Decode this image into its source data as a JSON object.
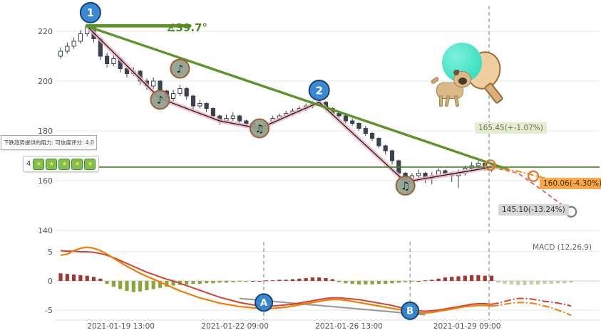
{
  "overlays": {
    "tooltip_resistance": "下跌趋势提供的阻力: 可信度评分: 4.0",
    "badge_count": "4",
    "badge_star": "★",
    "angle_label": "∡39.7°",
    "price_label_current": "165.45(+-1.07%)",
    "price_label_mid": "160.06(-4.30%)",
    "price_label_low": "145.10(-13.24%)",
    "macd_param_label": "MACD (12,26,9)"
  },
  "chart_data": {
    "type": "candlestick",
    "title": "Hourly stock candlestick chart with downtrend resistance lines, ZigZag overlay and MACD panel",
    "x_axis": {
      "ticks": [
        {
          "label": "2021-01-19 13:00",
          "i": 9.1
        },
        {
          "label": "2021-01-22 09:00",
          "i": 26.3
        },
        {
          "label": "2021-01-26 13:00",
          "i": 43.5
        },
        {
          "label": "2021-01-29 09:00",
          "i": 61.3
        }
      ]
    },
    "price_axis": {
      "ticks": [
        220,
        200,
        180,
        160,
        140
      ],
      "min": 138,
      "max": 228
    },
    "macd_axis": {
      "ticks": [
        5,
        0,
        -5
      ],
      "min": -7,
      "max": 7
    },
    "candles_ohlc": [
      [
        210,
        213.5,
        209,
        212
      ],
      [
        212,
        215.5,
        211,
        214
      ],
      [
        214,
        217.5,
        213,
        216
      ],
      [
        216,
        220.5,
        215,
        219
      ],
      [
        219,
        223,
        218,
        222
      ],
      [
        222,
        222.5,
        215.5,
        217
      ],
      [
        217,
        217.5,
        208.5,
        210
      ],
      [
        210,
        211.5,
        205.5,
        207
      ],
      [
        207,
        210.5,
        206,
        209
      ],
      [
        209,
        209.5,
        203.5,
        205
      ],
      [
        205,
        206,
        201.5,
        203
      ],
      [
        203,
        205.5,
        202,
        204
      ],
      [
        204,
        204.5,
        198.5,
        200
      ],
      [
        200,
        201,
        196.5,
        198
      ],
      [
        198,
        201.5,
        197,
        200
      ],
      [
        200,
        200.5,
        194.5,
        196
      ],
      [
        196,
        196.5,
        191.5,
        193
      ],
      [
        193,
        196.5,
        192,
        195
      ],
      [
        195,
        198.5,
        194,
        197
      ],
      [
        197,
        197.5,
        192.5,
        194
      ],
      [
        194,
        194.5,
        188.5,
        190
      ],
      [
        190,
        192.5,
        189,
        191
      ],
      [
        191,
        191.5,
        187.5,
        189
      ],
      [
        189,
        189.5,
        184.5,
        186
      ],
      [
        186,
        186.5,
        182.5,
        184
      ],
      [
        184,
        186.5,
        183,
        185
      ],
      [
        185,
        187.5,
        184,
        186
      ],
      [
        186,
        186.5,
        182.5,
        184
      ],
      [
        184,
        184.5,
        181.5,
        183
      ],
      [
        183,
        183.5,
        180.5,
        182
      ],
      [
        182,
        182.5,
        179.5,
        181
      ],
      [
        181,
        184,
        180.5,
        183
      ],
      [
        183,
        186,
        182.5,
        185
      ],
      [
        185,
        187,
        184,
        186
      ],
      [
        186,
        188,
        185,
        187
      ],
      [
        187,
        189,
        186,
        188
      ],
      [
        188,
        190,
        187,
        189
      ],
      [
        189,
        191,
        188,
        190
      ],
      [
        190,
        192,
        189,
        191
      ],
      [
        191,
        192.5,
        190,
        191.5
      ],
      [
        191.5,
        192,
        188,
        189
      ],
      [
        189,
        189.5,
        186,
        187
      ],
      [
        187,
        188,
        185,
        186
      ],
      [
        186,
        186.5,
        183,
        184
      ],
      [
        184,
        185,
        182,
        183
      ],
      [
        183,
        183.5,
        180,
        181
      ],
      [
        181,
        182,
        178,
        179
      ],
      [
        179,
        179.5,
        176,
        177
      ],
      [
        177,
        177.5,
        173,
        174
      ],
      [
        174,
        174.5,
        170.5,
        172
      ],
      [
        172,
        172.5,
        166.5,
        168
      ],
      [
        168,
        168.5,
        161.5,
        163
      ],
      [
        163,
        163.5,
        157.5,
        160
      ],
      [
        160,
        163,
        158.5,
        162
      ],
      [
        162,
        164.5,
        160.5,
        163
      ],
      [
        163,
        163.5,
        159,
        161
      ],
      [
        161,
        163.5,
        158.5,
        162
      ],
      [
        162,
        165,
        161,
        164
      ],
      [
        164,
        164.5,
        161.5,
        163
      ],
      [
        163,
        163.5,
        159.5,
        162
      ],
      [
        162,
        164.5,
        157,
        163
      ],
      [
        163,
        166,
        162,
        165
      ],
      [
        165,
        167.5,
        164,
        166
      ],
      [
        166,
        168,
        165,
        167
      ],
      [
        167,
        167.5,
        164,
        166
      ],
      [
        166,
        167,
        163.5,
        165.45
      ]
    ],
    "zigzag": [
      [
        4,
        222
      ],
      [
        15,
        193
      ],
      [
        24,
        184
      ],
      [
        30,
        181
      ],
      [
        39,
        191.5
      ],
      [
        52,
        159.5
      ],
      [
        65,
        165.45
      ]
    ],
    "trend_lines": [
      {
        "from": [
          4,
          222
        ],
        "to": [
          67.5,
          164.5
        ],
        "width": 3.4,
        "role": "downtrend-resistance"
      },
      {
        "from": [
          4,
          222.2
        ],
        "to": [
          19.5,
          222.2
        ],
        "width": 4.6,
        "role": "horizontal-angle-reference"
      }
    ],
    "trend_angle_deg": 39.7,
    "level_line": {
      "price": 165.45
    },
    "projections_price": [
      {
        "name": "bear-target",
        "dash": "6,4",
        "color": "#e06a6a",
        "points": [
          [
            65,
            165.45
          ],
          [
            69,
            163
          ],
          [
            73,
            155.5
          ],
          [
            77,
            147.5
          ]
        ]
      },
      {
        "name": "mid-target",
        "dash": "9,3,2,3",
        "color": "#f08c00",
        "points": [
          [
            65,
            165.45
          ],
          [
            69,
            163.8
          ],
          [
            73,
            161
          ],
          [
            76,
            159.8
          ]
        ]
      }
    ],
    "rings": [
      {
        "i": 64.8,
        "p": 166.2,
        "color": "#e07b39"
      },
      {
        "i": 71.3,
        "p": 161.8,
        "color": "#e07b39"
      },
      {
        "i": 77.0,
        "p": 147.5,
        "color": "#808080"
      }
    ],
    "price_targets": [
      {
        "label": "165.45(+-1.07%)",
        "value": 165.45,
        "change_pct": -1.07
      },
      {
        "label": "160.06(-4.30%)",
        "value": 160.06,
        "change_pct": -4.3
      },
      {
        "label": "145.10(-13.24%)",
        "value": 145.1,
        "change_pct": -13.24
      }
    ],
    "markers_price": [
      {
        "label": "1",
        "i": 4.5,
        "p": 227.5
      },
      {
        "label": "2",
        "i": 39,
        "p": 196.3
      }
    ],
    "note_markers": [
      {
        "glyph": "♪",
        "i": 15,
        "p": 192.5
      },
      {
        "glyph": "♪",
        "i": 18,
        "p": 205
      },
      {
        "glyph": "♫",
        "i": 30,
        "p": 181
      },
      {
        "glyph": "♫",
        "i": 52,
        "p": 158
      }
    ],
    "dashed_vlines": [
      {
        "i": 64.62,
        "panel": "both"
      },
      {
        "i": 30.65,
        "panel": "macd"
      },
      {
        "i": 52.7,
        "panel": "macd"
      }
    ],
    "macd": {
      "label": "MACD (12,26,9)",
      "hist": [
        1.3,
        1.2,
        1.1,
        1.0,
        0.9,
        0.7,
        0.4,
        -0.5,
        -1.0,
        -1.4,
        -1.7,
        -1.9,
        -1.8,
        -1.6,
        -1.4,
        -1.2,
        -1.0,
        -0.8,
        -0.7,
        -0.6,
        -0.5,
        -0.5,
        -0.4,
        -0.4,
        -0.3,
        -0.3,
        -0.2,
        -0.1,
        -0.1,
        0.0,
        0.0,
        0.1,
        0.1,
        0.2,
        0.2,
        0.3,
        0.4,
        0.5,
        0.6,
        0.6,
        0.5,
        0.3,
        -0.2,
        -0.4,
        -0.5,
        -0.6,
        -0.6,
        -0.6,
        -0.5,
        -0.5,
        -0.4,
        -0.3,
        -0.2,
        -0.1,
        0.0,
        0.1,
        0.2,
        0.4,
        0.6,
        0.7,
        0.8,
        0.9,
        1.0,
        1.0,
        0.9,
        0.9
      ],
      "hist_proj": [
        -0.3,
        -0.5,
        -0.6,
        -0.7,
        -0.7,
        -0.6,
        -0.6,
        -0.5,
        -0.5,
        -0.4,
        -0.4,
        -0.3
      ],
      "line_red": [
        5.2,
        5.1,
        5.1,
        5.0,
        5.0,
        4.9,
        4.7,
        4.4,
        4.0,
        3.5,
        3.0,
        2.5,
        2.0,
        1.5,
        1.1,
        0.7,
        0.3,
        0.0,
        -0.4,
        -0.8,
        -1.2,
        -1.6,
        -2.0,
        -2.4,
        -2.8,
        -3.1,
        -3.4,
        -3.7,
        -3.9,
        -4.1,
        -4.2,
        -4.3,
        -4.3,
        -4.2,
        -4.1,
        -4.0,
        -3.8,
        -3.6,
        -3.4,
        -3.2,
        -3.0,
        -2.9,
        -2.9,
        -3.0,
        -3.1,
        -3.2,
        -3.4,
        -3.6,
        -3.8,
        -4.0,
        -4.2,
        -4.5,
        -4.8,
        -5.0,
        -5.1,
        -5.2,
        -5.1,
        -5.0,
        -4.8,
        -4.6,
        -4.4,
        -4.2,
        -4.0,
        -3.9,
        -3.9,
        -4.0
      ],
      "line_orange": [
        4.4,
        4.6,
        5.2,
        5.6,
        5.8,
        5.6,
        5.2,
        4.6,
        3.9,
        3.2,
        2.5,
        1.9,
        1.3,
        0.8,
        0.3,
        -0.2,
        -0.7,
        -1.2,
        -1.7,
        -2.1,
        -2.5,
        -2.9,
        -3.2,
        -3.5,
        -3.8,
        -4.0,
        -4.2,
        -4.4,
        -4.5,
        -4.6,
        -4.7,
        -4.8,
        -4.7,
        -4.6,
        -4.5,
        -4.3,
        -4.1,
        -3.9,
        -3.7,
        -3.5,
        -3.3,
        -3.2,
        -3.2,
        -3.3,
        -3.5,
        -3.7,
        -3.9,
        -4.1,
        -4.3,
        -4.5,
        -4.7,
        -4.9,
        -5.1,
        -5.3,
        -5.5,
        -5.5,
        -5.4,
        -5.2,
        -5.0,
        -4.8,
        -4.6,
        -4.4,
        -4.3,
        -4.2,
        -4.2,
        -4.3
      ],
      "line_red_proj": [
        -3.8,
        -3.5,
        -3.2,
        -3.0,
        -3.0,
        -3.1,
        -3.3,
        -3.5,
        -3.6,
        -3.8,
        -4.0,
        -4.3
      ],
      "line_orange_proj": [
        -4.2,
        -4.0,
        -3.8,
        -3.7,
        -3.7,
        -3.8,
        -4.0,
        -4.3,
        -4.6,
        -5.0,
        -5.4,
        -5.9
      ],
      "gray_line": {
        "from": [
          27,
          -3.0
        ],
        "to": [
          55,
          -5.8
        ]
      },
      "markers": [
        {
          "label": "A",
          "i": 30.65,
          "v": -3.7
        },
        {
          "label": "B",
          "i": 52.7,
          "v": -5.1
        }
      ]
    },
    "colors": {
      "trend_green": "#5b9427",
      "level_green": "#3f7d1c",
      "candle": "#3a4350",
      "zigzag_glow": "#f3aebe",
      "zigzag_line": "#1c1c1c",
      "macd_red": "#cf4335",
      "macd_orange": "#f07d00",
      "macd_gray": "#9b9b9b",
      "hist_pos": "#a03a30",
      "hist_neg": "#8aa63a",
      "marker_blue": "#2a7fd0",
      "marker_blue_border": "#14466e",
      "note_fill": "#8ea08d",
      "note_border": "#a85a32",
      "dashed_line": "#7f93a6",
      "grid": "#e5e5e5",
      "axis_text": "#555555"
    }
  }
}
